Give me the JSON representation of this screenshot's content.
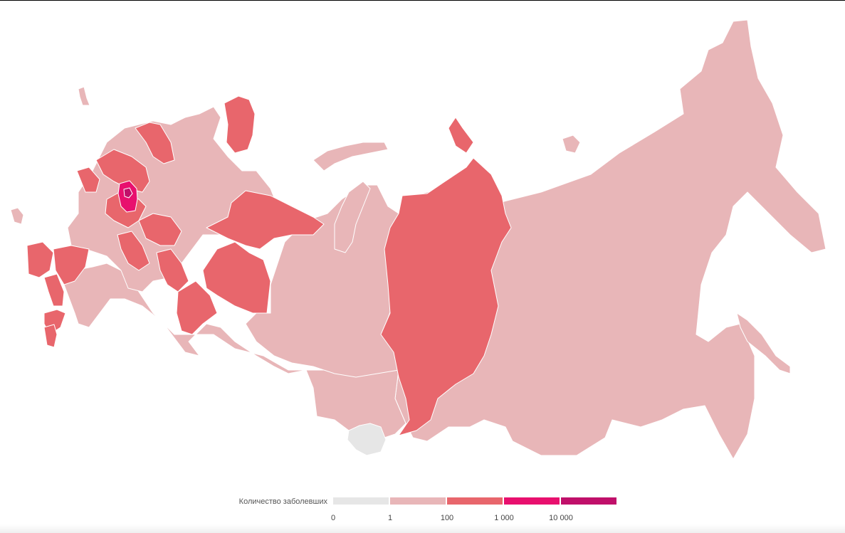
{
  "colors": {
    "none": "#e6e6e6",
    "level1": "#e8b6b8",
    "level2": "#e8666c",
    "level3": "#e8106e",
    "level4": "#c0106a"
  },
  "legend": {
    "title": "Количество заболевших",
    "bins": [
      {
        "color": "#e6e6e6"
      },
      {
        "color": "#e8b6b8"
      },
      {
        "color": "#e8666c"
      },
      {
        "color": "#e8106e"
      },
      {
        "color": "#c0106a"
      }
    ],
    "ticks": [
      "0",
      "1",
      "100",
      "1 000",
      "10 000"
    ]
  }
}
